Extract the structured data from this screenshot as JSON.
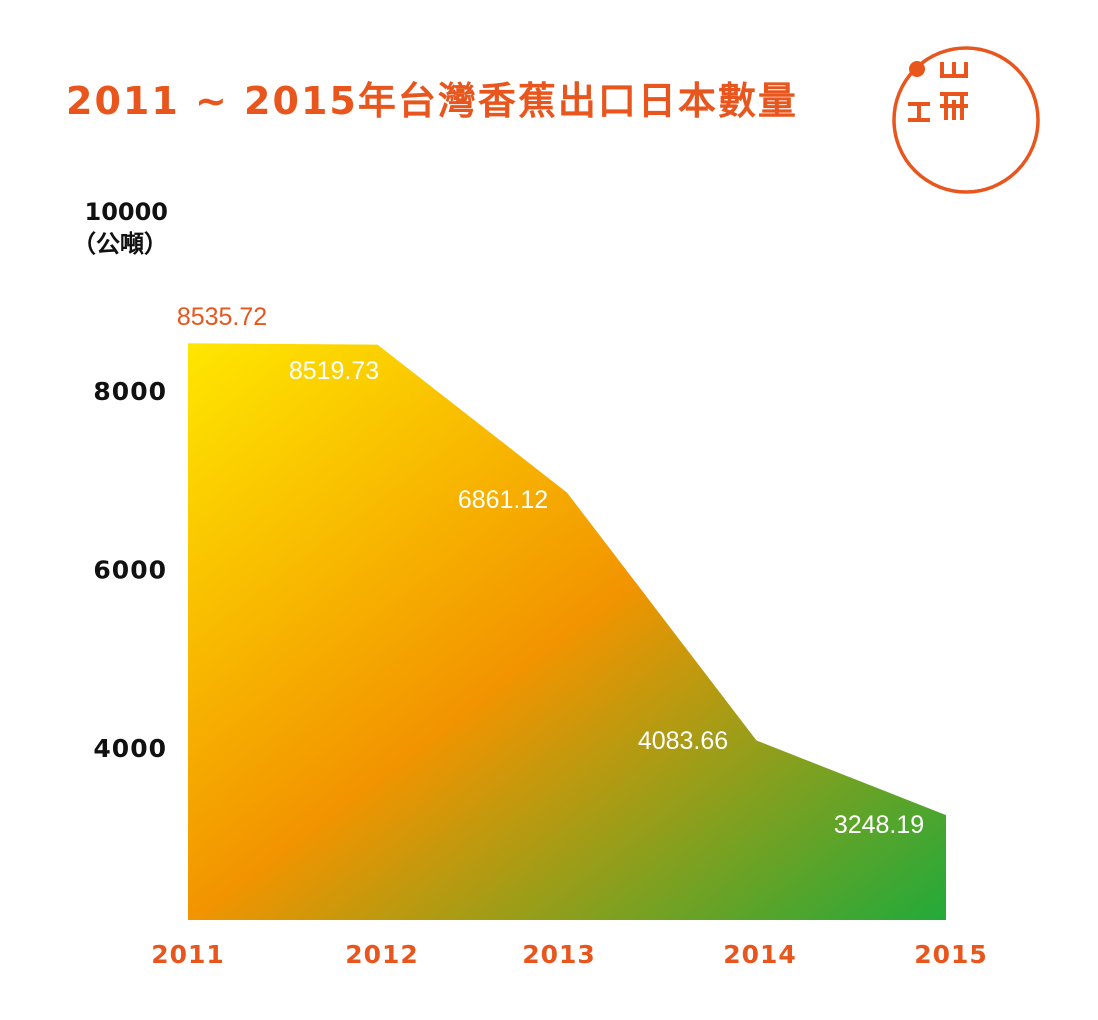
{
  "title": "2011 ~ 2015年台灣香蕉出口日本數量",
  "y_unit": {
    "top": "10000",
    "bottom": "（公噸）"
  },
  "colors": {
    "accent": "#e8561e",
    "gradient_start": "#ffe600",
    "gradient_mid": "#f29400",
    "gradient_end": "#22aa3a"
  },
  "chart_data": {
    "type": "area",
    "x": [
      "2011",
      "2012",
      "2013",
      "2014",
      "2015"
    ],
    "values": [
      8535.72,
      8519.73,
      6861.12,
      4083.66,
      3248.19
    ],
    "data_labels": [
      "8535.72",
      "8519.73",
      "6861.12",
      "4083.66",
      "3248.19"
    ],
    "ylabel": "10000（公噸）",
    "yticks": [
      8000,
      6000,
      4000
    ],
    "ytick_labels": [
      "8000",
      "6000",
      "4000"
    ],
    "ylim": [
      2000,
      10000
    ],
    "grid": false,
    "legend": "none"
  }
}
